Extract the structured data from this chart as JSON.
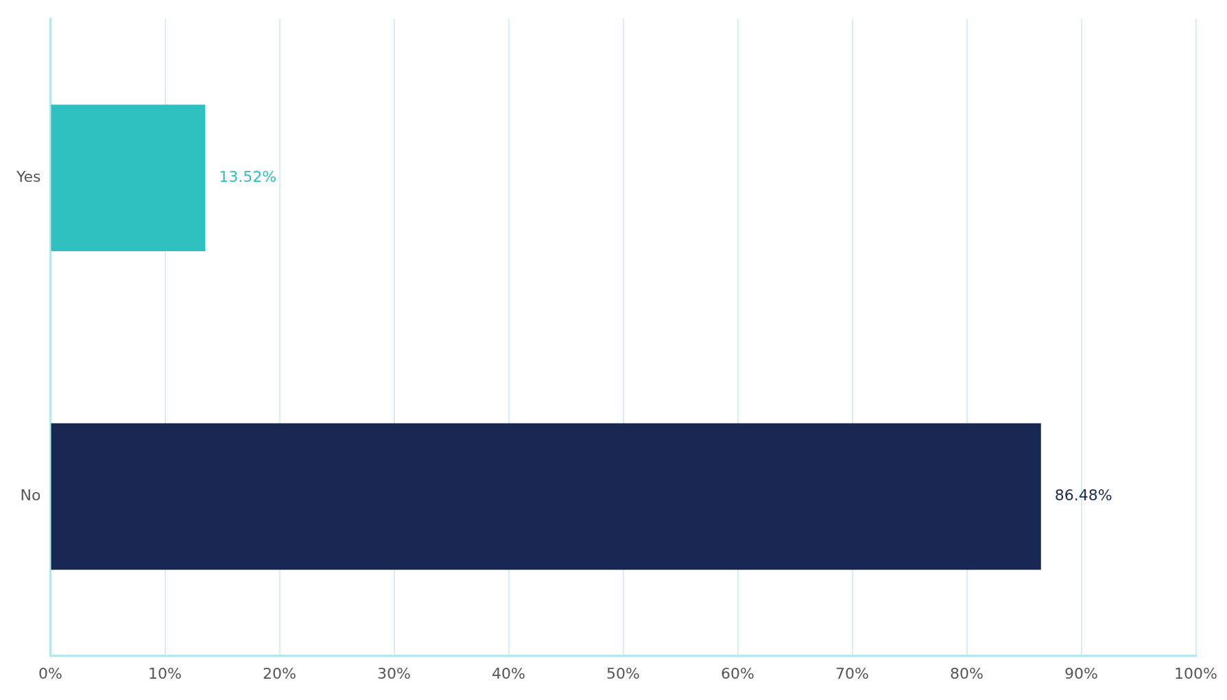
{
  "chart_data": {
    "type": "bar",
    "orientation": "horizontal",
    "categories": [
      "Yes",
      "No"
    ],
    "values": [
      13.52,
      86.48
    ],
    "colors": [
      "#2ebfbf",
      "#182852"
    ],
    "value_labels": [
      "13.52%",
      "86.48%"
    ],
    "xlim": [
      0,
      100
    ],
    "xticks": [
      {
        "value": 0,
        "label": "0%"
      },
      {
        "value": 10,
        "label": "10%"
      },
      {
        "value": 20,
        "label": "20%"
      },
      {
        "value": 30,
        "label": "30%"
      },
      {
        "value": 40,
        "label": "40%"
      },
      {
        "value": 50,
        "label": "50%"
      },
      {
        "value": 60,
        "label": "60%"
      },
      {
        "value": 70,
        "label": "70%"
      },
      {
        "value": 80,
        "label": "80%"
      },
      {
        "value": 90,
        "label": "90%"
      },
      {
        "value": 100,
        "label": "100%"
      }
    ],
    "grid": "x"
  }
}
